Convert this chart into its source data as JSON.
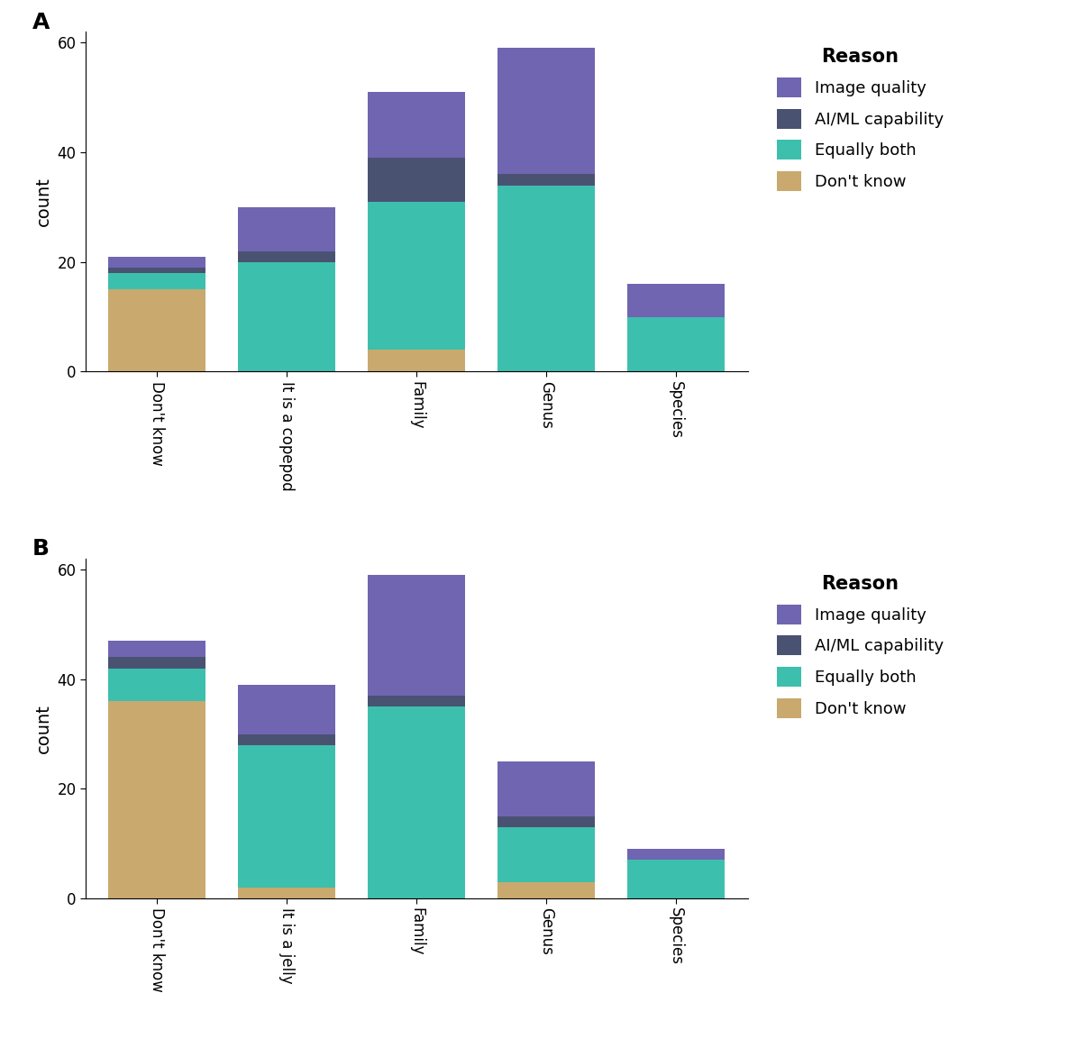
{
  "chart_A": {
    "categories": [
      "Don't know",
      "It is a copepod",
      "Family",
      "Genus",
      "Species"
    ],
    "dont_know": [
      15,
      0,
      4,
      0,
      0
    ],
    "equally_both": [
      3,
      20,
      27,
      34,
      10
    ],
    "aiml": [
      1,
      2,
      8,
      2,
      0
    ],
    "image_quality": [
      2,
      8,
      12,
      23,
      6
    ]
  },
  "chart_B": {
    "categories": [
      "Don't know",
      "It is a jelly",
      "Family",
      "Genus",
      "Species"
    ],
    "dont_know": [
      36,
      2,
      0,
      3,
      0
    ],
    "equally_both": [
      6,
      26,
      35,
      10,
      7
    ],
    "aiml": [
      2,
      2,
      2,
      2,
      0
    ],
    "image_quality": [
      3,
      9,
      22,
      10,
      2
    ]
  },
  "colors": {
    "dont_know": "#C9A96E",
    "equally_both": "#3DBFAD",
    "aiml": "#4A5272",
    "image_quality": "#7065B1"
  },
  "legend_labels": {
    "image_quality": "Image quality",
    "aiml": "AI/ML capability",
    "equally_both": "Equally both",
    "dont_know": "Don't know"
  },
  "ylabel": "count",
  "ylim": [
    0,
    62
  ],
  "yticks": [
    0,
    20,
    40,
    60
  ],
  "panel_labels": [
    "A",
    "B"
  ],
  "background_color": "#ffffff",
  "bar_width": 0.75,
  "legend_title": "Reason",
  "tick_rotation": -90,
  "tick_ha": "center",
  "tick_fontsize": 12,
  "ylabel_fontsize": 14,
  "legend_fontsize": 13,
  "legend_title_fontsize": 15,
  "panel_label_fontsize": 18
}
